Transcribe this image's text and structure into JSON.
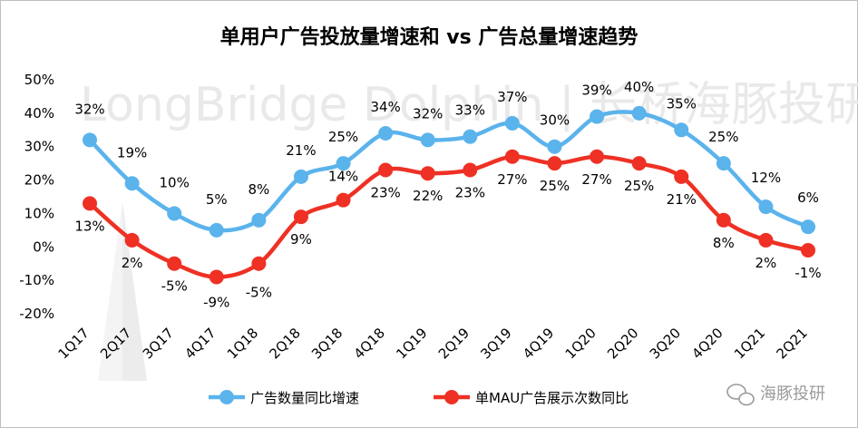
{
  "chart_data": {
    "type": "line",
    "title": "单用户广告投放量增速和 vs 广告总量增速趋势",
    "categories": [
      "1Q17",
      "2Q17",
      "3Q17",
      "4Q17",
      "1Q18",
      "2Q18",
      "3Q18",
      "4Q18",
      "1Q19",
      "2Q19",
      "3Q19",
      "4Q19",
      "1Q20",
      "2Q20",
      "3Q20",
      "4Q20",
      "1Q21",
      "2Q21"
    ],
    "series": [
      {
        "name": "广告数量同比增速",
        "color": "#5bb3ec",
        "values": [
          32,
          19,
          10,
          5,
          8,
          21,
          25,
          34,
          32,
          33,
          37,
          30,
          39,
          40,
          35,
          25,
          12,
          6
        ],
        "labels": [
          "32%",
          "19%",
          "10%",
          "5%",
          "8%",
          "21%",
          "25%",
          "34%",
          "32%",
          "33%",
          "37%",
          "30%",
          "39%",
          "40%",
          "35%",
          "25%",
          "12%",
          "6%"
        ]
      },
      {
        "name": "单MAU广告展示次数同比",
        "color": "#ee3124",
        "values": [
          13,
          2,
          -5,
          -9,
          -5,
          9,
          14,
          23,
          22,
          23,
          27,
          25,
          27,
          25,
          21,
          8,
          2,
          -1
        ],
        "labels": [
          "13%",
          "2%",
          "-5%",
          "-9%",
          "-5%",
          "9%",
          "14%",
          "23%",
          "22%",
          "23%",
          "27%",
          "25%",
          "27%",
          "25%",
          "21%",
          "8%",
          "2%",
          "-1%"
        ]
      }
    ],
    "ylim": [
      -20,
      50
    ],
    "yticks": [
      "-20%",
      "-10%",
      "0%",
      "10%",
      "20%",
      "30%",
      "40%",
      "50%"
    ],
    "ytick_values": [
      -20,
      -10,
      0,
      10,
      20,
      30,
      40,
      50
    ],
    "xlabel": "",
    "ylabel": "",
    "grid": false,
    "legend": "bottom"
  },
  "watermark": {
    "text": "LongBridge Dolphin | 长桥海豚投研",
    "badge": "海豚投研"
  }
}
